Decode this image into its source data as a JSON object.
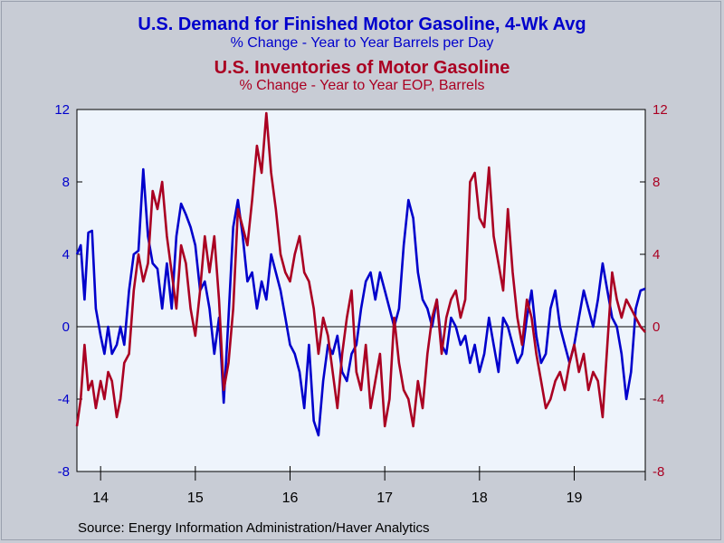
{
  "colors": {
    "demand": "#0000cc",
    "inventories": "#aa0022",
    "plot_bg": "#eef4fc",
    "page_bg": "#c8ccd5"
  },
  "header": {
    "title1": "U.S. Demand for Finished Motor Gasoline, 4-Wk Avg",
    "subtitle1": "% Change - Year to Year     Barrels per Day",
    "title2": "U.S. Inventories of Motor Gasoline",
    "subtitle2": "% Change - Year to Year    EOP,  Barrels"
  },
  "footer": {
    "source": "Source:  Energy Information Administration/Haver Analytics"
  },
  "chart_data": {
    "type": "line",
    "x_unit": "year",
    "xlim": [
      2013.75,
      2019.75
    ],
    "x_ticks": [
      2014,
      2015,
      2016,
      2017,
      2018,
      2019,
      2019.75
    ],
    "x_tick_labels": [
      "14",
      "15",
      "16",
      "17",
      "18",
      "19"
    ],
    "x_label_positions": [
      2014.0,
      2015.0,
      2016.0,
      2017.0,
      2018.0,
      2019.0
    ],
    "ylim_left": [
      -8,
      12
    ],
    "ylim_right": [
      -8,
      12
    ],
    "y_ticks": [
      12,
      8,
      4,
      0,
      -4,
      -8
    ],
    "y_tick_labels": [
      "12",
      "8",
      "4",
      "0",
      "-4",
      "-8"
    ],
    "zero_line": true,
    "grid": false,
    "series": [
      {
        "name": "U.S. Demand for Finished Motor Gasoline, 4-Wk Avg",
        "axis": "left",
        "x": [
          2013.75,
          2013.79,
          2013.83,
          2013.87,
          2013.91,
          2013.95,
          2014.0,
          2014.04,
          2014.08,
          2014.12,
          2014.17,
          2014.21,
          2014.25,
          2014.3,
          2014.35,
          2014.4,
          2014.45,
          2014.5,
          2014.55,
          2014.6,
          2014.65,
          2014.7,
          2014.75,
          2014.8,
          2014.85,
          2014.9,
          2014.95,
          2015.0,
          2015.05,
          2015.1,
          2015.15,
          2015.2,
          2015.25,
          2015.3,
          2015.35,
          2015.4,
          2015.45,
          2015.5,
          2015.55,
          2015.6,
          2015.65,
          2015.7,
          2015.75,
          2015.8,
          2015.85,
          2015.9,
          2015.95,
          2016.0,
          2016.05,
          2016.1,
          2016.15,
          2016.2,
          2016.25,
          2016.3,
          2016.35,
          2016.4,
          2016.45,
          2016.5,
          2016.55,
          2016.6,
          2016.65,
          2016.7,
          2016.75,
          2016.8,
          2016.85,
          2016.9,
          2016.95,
          2017.0,
          2017.05,
          2017.1,
          2017.15,
          2017.2,
          2017.25,
          2017.3,
          2017.35,
          2017.4,
          2017.45,
          2017.5,
          2017.55,
          2017.6,
          2017.65,
          2017.7,
          2017.75,
          2017.8,
          2017.85,
          2017.9,
          2017.95,
          2018.0,
          2018.05,
          2018.1,
          2018.15,
          2018.2,
          2018.25,
          2018.3,
          2018.35,
          2018.4,
          2018.45,
          2018.5,
          2018.55,
          2018.6,
          2018.65,
          2018.7,
          2018.75,
          2018.8,
          2018.85,
          2018.9,
          2018.95,
          2019.0,
          2019.05,
          2019.1,
          2019.15,
          2019.2,
          2019.25,
          2019.3,
          2019.35,
          2019.4,
          2019.45,
          2019.5,
          2019.55,
          2019.6,
          2019.65,
          2019.7,
          2019.75
        ],
        "values": [
          4.0,
          4.5,
          1.5,
          5.2,
          5.3,
          1.0,
          -0.5,
          -1.5,
          0.0,
          -1.5,
          -1.0,
          0.0,
          -1.0,
          2.0,
          4.0,
          4.2,
          8.7,
          5.0,
          3.5,
          3.2,
          1.0,
          3.5,
          1.0,
          5.0,
          6.8,
          6.2,
          5.5,
          4.5,
          2.0,
          2.5,
          1.0,
          -1.5,
          0.5,
          -4.2,
          0.5,
          5.5,
          7.0,
          5.0,
          2.5,
          3.0,
          1.0,
          2.5,
          1.5,
          4.0,
          3.0,
          2.0,
          0.5,
          -1.0,
          -1.5,
          -2.5,
          -4.5,
          -1.0,
          -5.2,
          -6.0,
          -3.0,
          -1.0,
          -1.5,
          -0.5,
          -2.5,
          -3.0,
          -1.5,
          -1.0,
          1.0,
          2.5,
          3.0,
          1.5,
          3.0,
          2.0,
          1.0,
          0.0,
          1.0,
          4.5,
          7.0,
          6.0,
          3.0,
          1.5,
          1.0,
          0.0,
          1.5,
          -1.0,
          -1.5,
          0.5,
          0.0,
          -1.0,
          -0.5,
          -2.0,
          -1.0,
          -2.5,
          -1.5,
          0.5,
          -1.0,
          -2.5,
          0.5,
          0.0,
          -1.0,
          -2.0,
          -1.5,
          0.5,
          2.0,
          -0.5,
          -2.0,
          -1.5,
          1.0,
          2.0,
          0.0,
          -1.0,
          -2.0,
          -1.0,
          0.5,
          2.0,
          1.0,
          0.0,
          1.5,
          3.5,
          2.0,
          0.5,
          0.0,
          -1.5,
          -4.0,
          -2.5,
          1.0,
          2.0,
          2.1
        ]
      },
      {
        "name": "U.S. Inventories of Motor Gasoline",
        "axis": "right",
        "x": [
          2013.75,
          2013.79,
          2013.83,
          2013.87,
          2013.91,
          2013.95,
          2014.0,
          2014.04,
          2014.08,
          2014.12,
          2014.17,
          2014.21,
          2014.25,
          2014.3,
          2014.35,
          2014.4,
          2014.45,
          2014.5,
          2014.55,
          2014.6,
          2014.65,
          2014.7,
          2014.75,
          2014.8,
          2014.85,
          2014.9,
          2014.95,
          2015.0,
          2015.05,
          2015.1,
          2015.15,
          2015.2,
          2015.25,
          2015.3,
          2015.35,
          2015.4,
          2015.45,
          2015.5,
          2015.55,
          2015.6,
          2015.65,
          2015.7,
          2015.75,
          2015.8,
          2015.85,
          2015.9,
          2015.95,
          2016.0,
          2016.05,
          2016.1,
          2016.15,
          2016.2,
          2016.25,
          2016.3,
          2016.35,
          2016.4,
          2016.45,
          2016.5,
          2016.55,
          2016.6,
          2016.65,
          2016.7,
          2016.75,
          2016.8,
          2016.85,
          2016.9,
          2016.95,
          2017.0,
          2017.05,
          2017.1,
          2017.15,
          2017.2,
          2017.25,
          2017.3,
          2017.35,
          2017.4,
          2017.45,
          2017.5,
          2017.55,
          2017.6,
          2017.65,
          2017.7,
          2017.75,
          2017.8,
          2017.85,
          2017.9,
          2017.95,
          2018.0,
          2018.05,
          2018.1,
          2018.15,
          2018.2,
          2018.25,
          2018.3,
          2018.35,
          2018.4,
          2018.45,
          2018.5,
          2018.55,
          2018.6,
          2018.65,
          2018.7,
          2018.75,
          2018.8,
          2018.85,
          2018.9,
          2018.95,
          2019.0,
          2019.05,
          2019.1,
          2019.15,
          2019.2,
          2019.25,
          2019.3,
          2019.35,
          2019.4,
          2019.45,
          2019.5,
          2019.55,
          2019.6,
          2019.65,
          2019.7,
          2019.75
        ],
        "values": [
          -5.5,
          -4.0,
          -1.0,
          -3.5,
          -3.0,
          -4.5,
          -3.0,
          -4.0,
          -2.5,
          -3.0,
          -5.0,
          -4.0,
          -2.0,
          -1.5,
          2.0,
          4.0,
          2.5,
          3.5,
          7.5,
          6.5,
          8.0,
          5.0,
          3.0,
          1.0,
          4.5,
          3.5,
          1.0,
          -0.5,
          2.0,
          5.0,
          3.0,
          5.0,
          1.5,
          -3.5,
          -2.0,
          1.0,
          6.5,
          5.5,
          4.5,
          7.0,
          10.0,
          8.5,
          11.8,
          8.5,
          6.5,
          4.0,
          3.0,
          2.5,
          4.0,
          5.0,
          3.0,
          2.5,
          1.0,
          -1.5,
          0.5,
          -0.5,
          -2.5,
          -4.5,
          -1.5,
          0.5,
          2.0,
          -2.5,
          -3.5,
          -1.0,
          -4.5,
          -3.0,
          -1.5,
          -5.5,
          -4.0,
          0.5,
          -2.0,
          -3.5,
          -4.0,
          -5.5,
          -3.0,
          -4.5,
          -1.5,
          0.5,
          1.5,
          -1.5,
          0.5,
          1.5,
          2.0,
          0.5,
          1.5,
          8.0,
          8.5,
          6.0,
          5.5,
          8.8,
          5.0,
          3.5,
          2.0,
          6.5,
          3.0,
          0.5,
          -1.0,
          1.5,
          0.5,
          -1.5,
          -3.0,
          -4.5,
          -4.0,
          -3.0,
          -2.5,
          -3.5,
          -2.0,
          -1.0,
          -2.5,
          -1.5,
          -3.5,
          -2.5,
          -3.0,
          -5.0,
          -1.0,
          3.0,
          1.5,
          0.5,
          1.5,
          1.0,
          0.5,
          0.0,
          -0.3
        ]
      }
    ]
  }
}
